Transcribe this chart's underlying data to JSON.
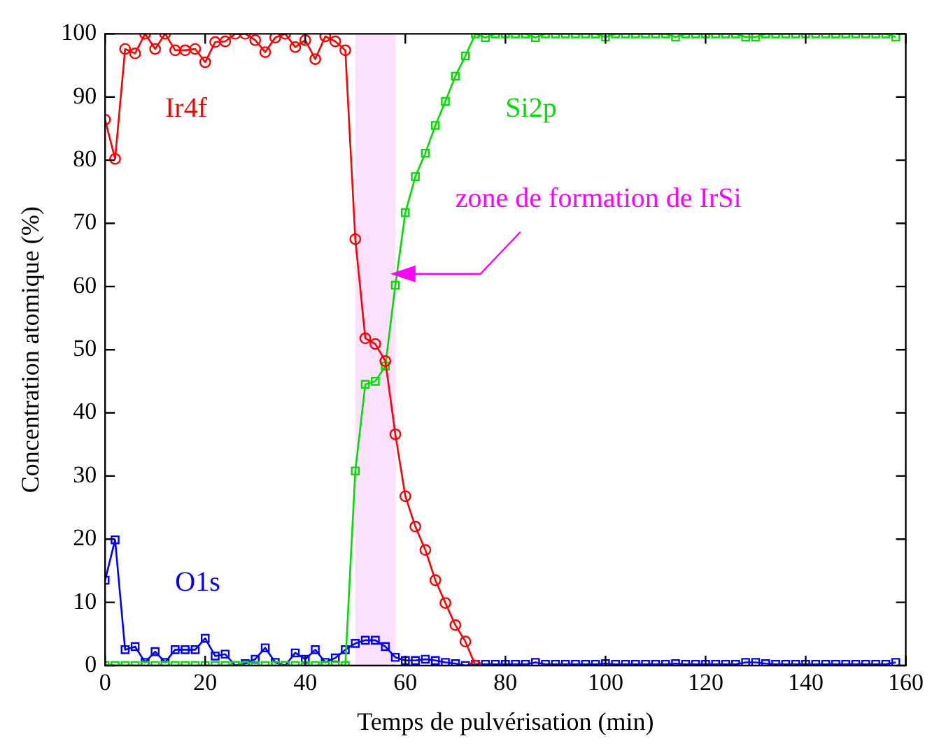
{
  "chart_data": {
    "type": "line",
    "xlabel": "Temps de pulvérisation (min)",
    "ylabel": "Concentration atomique (%)",
    "x": [
      0,
      2,
      4,
      6,
      8,
      10,
      12,
      14,
      16,
      18,
      20,
      22,
      24,
      26,
      28,
      30,
      32,
      34,
      36,
      38,
      40,
      42,
      44,
      46,
      48,
      50,
      52,
      54,
      56,
      58,
      60,
      62,
      64,
      66,
      68,
      70,
      72,
      74,
      76,
      78,
      80,
      82,
      84,
      86,
      88,
      90,
      92,
      94,
      96,
      98,
      100,
      102,
      104,
      106,
      108,
      110,
      112,
      114,
      116,
      118,
      120,
      122,
      124,
      126,
      128,
      130,
      132,
      134,
      136,
      138,
      140,
      142,
      144,
      146,
      148,
      150,
      152,
      154,
      156,
      158
    ],
    "series": [
      {
        "name": "Ir4f",
        "color": "#ff0000",
        "marker": "circle",
        "values": [
          86.4,
          80.2,
          97.6,
          96.9,
          100,
          97.6,
          100,
          97.4,
          97.4,
          97.6,
          95.5,
          98.7,
          98.8,
          100,
          100,
          99,
          97.1,
          99.4,
          100,
          97.9,
          99,
          96,
          99.6,
          98.8,
          97.4,
          67.5,
          51.8,
          50.9,
          48.2,
          36.6,
          26.8,
          22,
          18.3,
          13.5,
          9.9,
          6.4,
          3.8,
          0,
          null,
          null,
          null,
          null,
          null,
          null,
          null,
          null,
          null,
          null,
          null,
          null,
          null,
          null,
          null,
          null,
          null,
          null,
          null,
          null,
          null,
          null,
          null,
          null,
          null,
          null,
          null,
          null,
          null,
          null,
          null,
          null,
          null,
          null,
          null,
          null,
          null,
          null,
          null,
          null,
          null,
          null
        ]
      },
      {
        "name": "Si2p",
        "color": "#00dd00",
        "marker": "square",
        "values": [
          0,
          0,
          0,
          0,
          0,
          0,
          0,
          0,
          0,
          0,
          0,
          0,
          0,
          0,
          0,
          0,
          0,
          0,
          0,
          0,
          0,
          0,
          0,
          0,
          0,
          30.8,
          44.5,
          45,
          47.4,
          60.2,
          71.7,
          77.4,
          81.1,
          85.5,
          89.3,
          93.3,
          96.5,
          100,
          99.4,
          100,
          100,
          100,
          100,
          99.4,
          100,
          100,
          100,
          100,
          100,
          100,
          99.5,
          100,
          100,
          100,
          100,
          100,
          100,
          99.5,
          100,
          100,
          100,
          100,
          100,
          100,
          99.5,
          99.5,
          100,
          100,
          100,
          100,
          100,
          100,
          100,
          100,
          100,
          100,
          100,
          100,
          100,
          99.5
        ]
      },
      {
        "name": "O1s",
        "color": "#0000ff",
        "marker": "square",
        "values": [
          13.5,
          19.9,
          2.5,
          3,
          0.5,
          2.2,
          0.5,
          2.5,
          2.5,
          2.5,
          4.3,
          1.5,
          1.8,
          0,
          0.3,
          1,
          2.8,
          0.5,
          0,
          2,
          1,
          2.5,
          0.5,
          1.2,
          2.5,
          3.5,
          4,
          4,
          3,
          1.3,
          0.8,
          0.8,
          1,
          0.8,
          0.5,
          0.3,
          0,
          0.2,
          0.2,
          0.2,
          0.2,
          0.2,
          0.2,
          0.5,
          0.2,
          0.2,
          0.2,
          0.2,
          0.2,
          0.2,
          0.3,
          0.2,
          0.2,
          0.2,
          0.2,
          0.2,
          0.2,
          0.3,
          0.2,
          0.2,
          0.2,
          0.2,
          0.2,
          0.2,
          0.5,
          0.5,
          0.3,
          0.2,
          0.2,
          0.2,
          0.2,
          0.2,
          0.2,
          0.2,
          0.2,
          0.2,
          0.2,
          0.2,
          0.2,
          0.5
        ]
      }
    ],
    "xlim": [
      0,
      160
    ],
    "xticks": [
      0,
      20,
      40,
      60,
      80,
      100,
      120,
      140,
      160
    ],
    "ylim": [
      0,
      100
    ],
    "yticks": [
      0,
      10,
      20,
      30,
      40,
      50,
      60,
      70,
      80,
      90,
      100
    ],
    "bands": [
      {
        "axis": "x",
        "from": 50,
        "to": 58,
        "color": "#fbe1fb"
      }
    ],
    "annotations": [
      "zone de formation de IrSi"
    ],
    "grid": false,
    "legend": false,
    "line_style": "solid"
  }
}
